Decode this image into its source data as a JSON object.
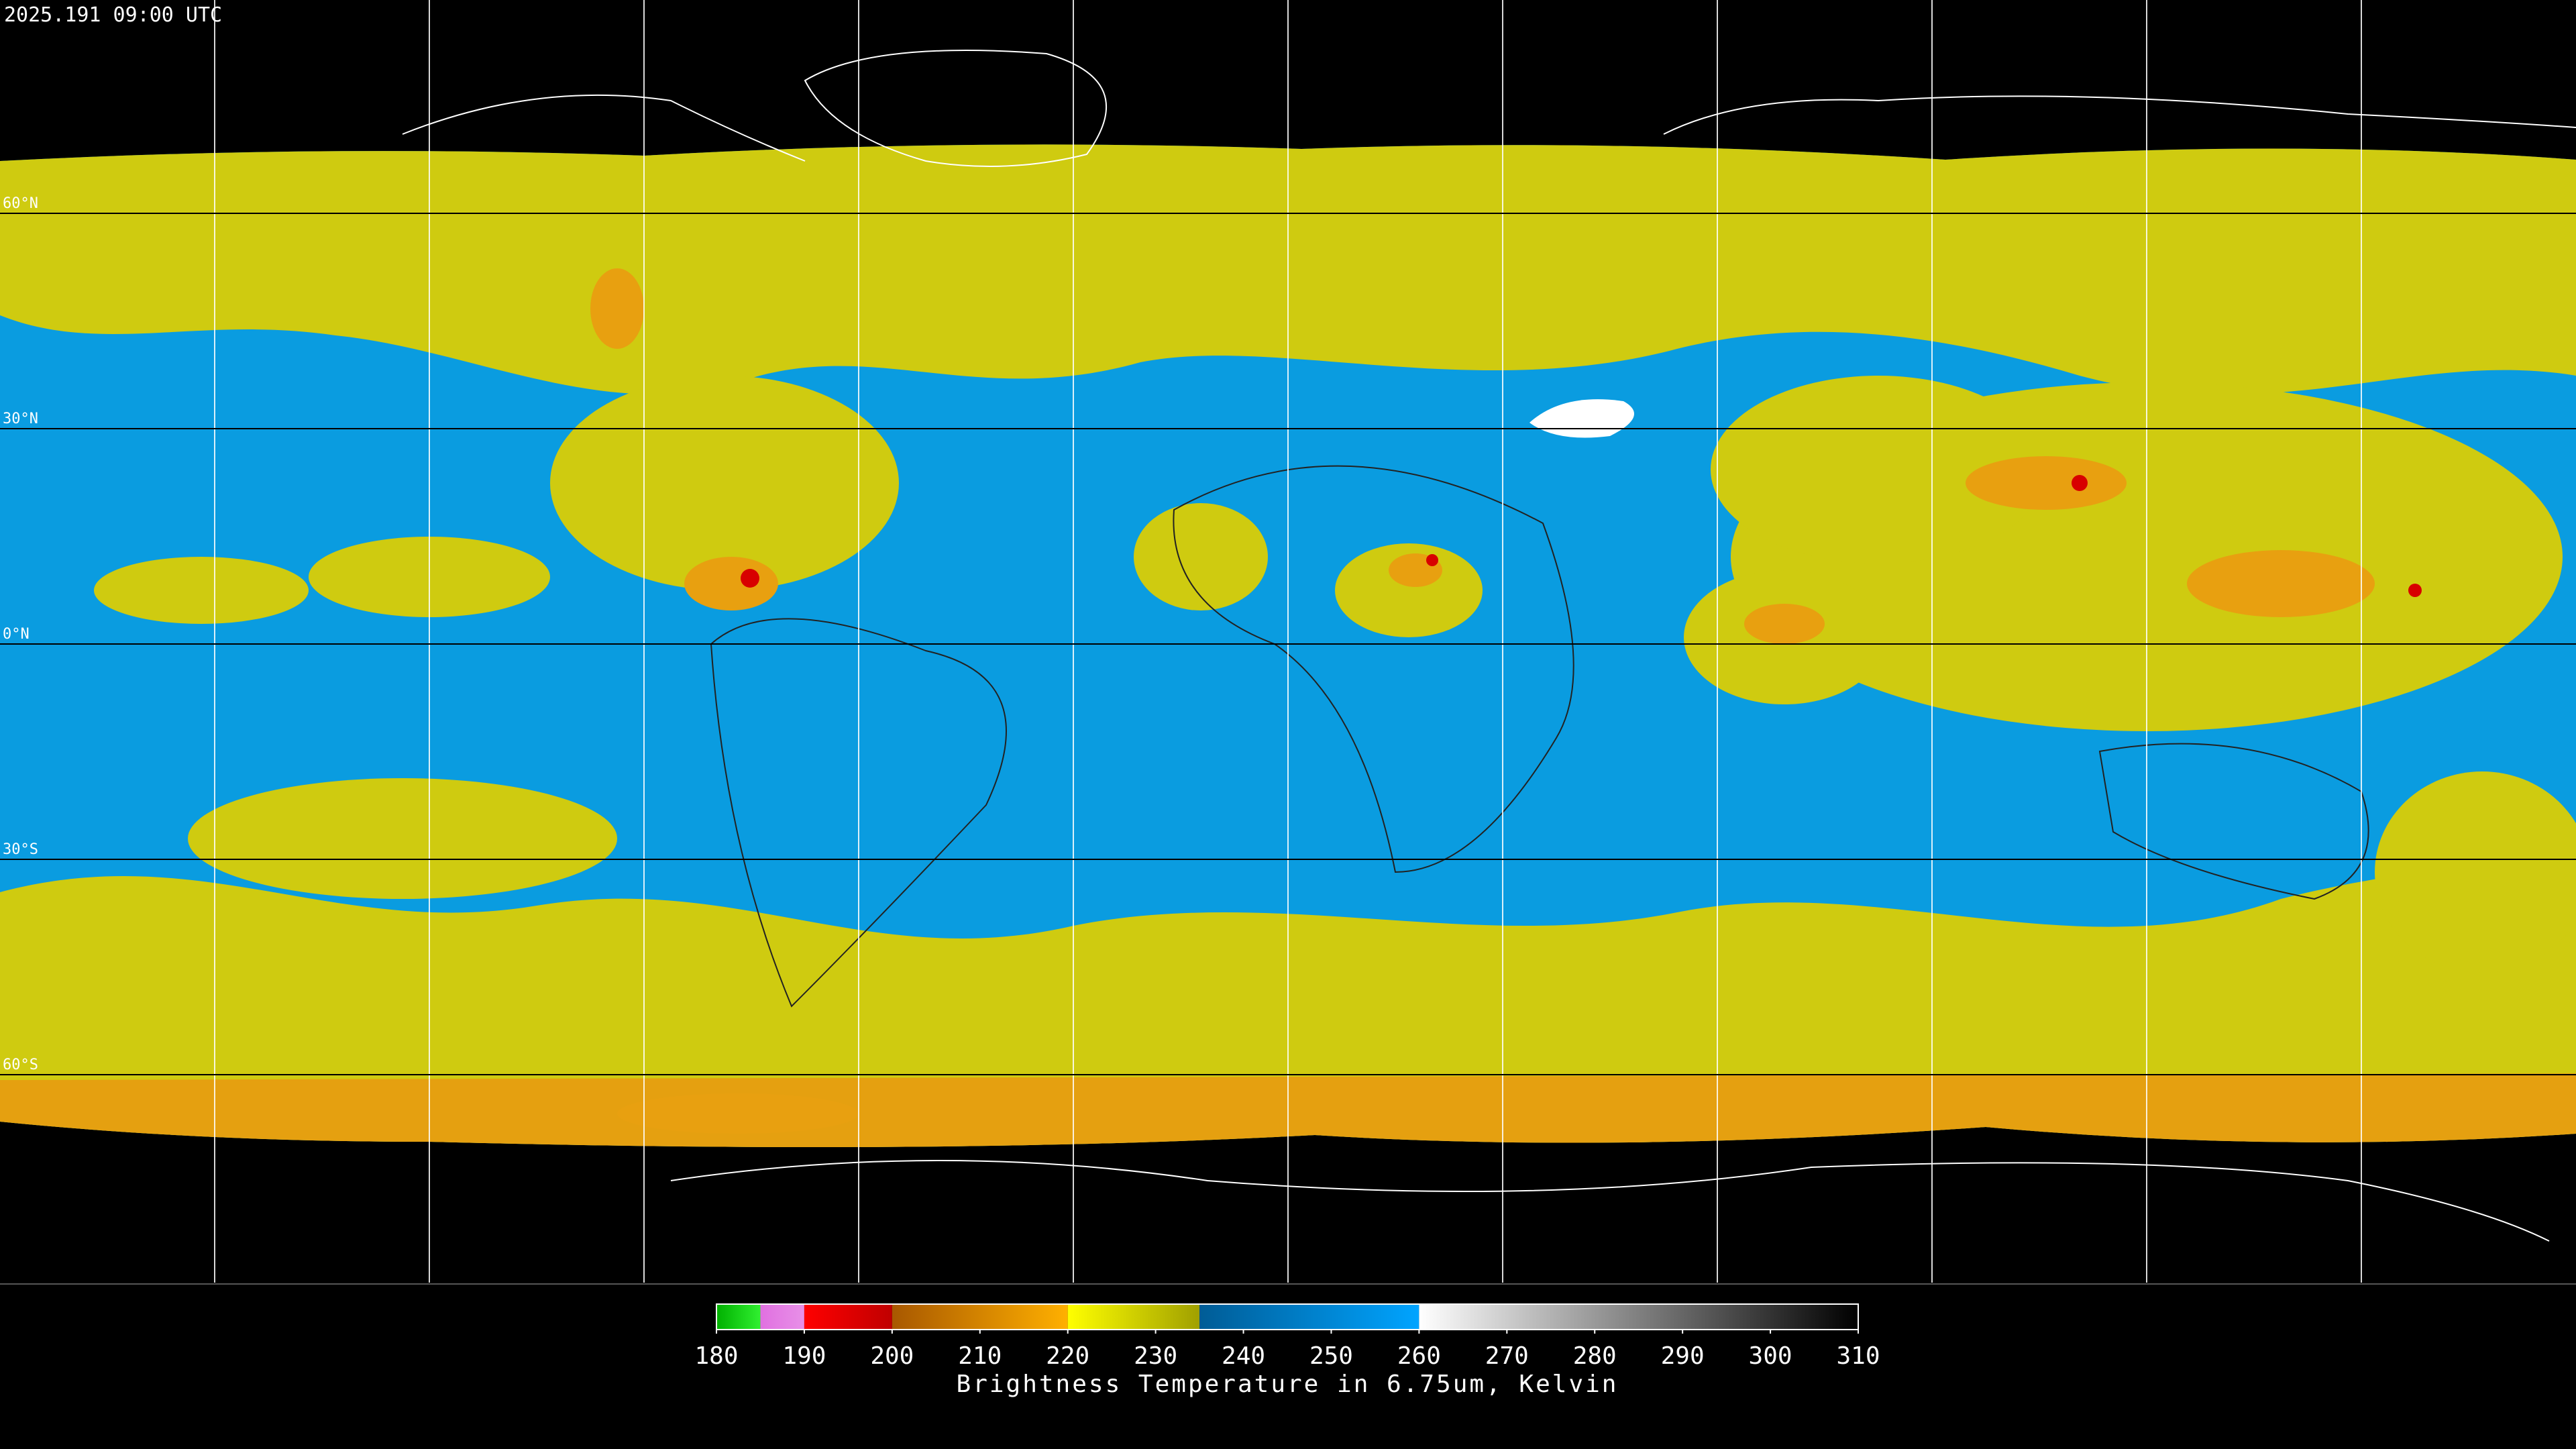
{
  "header": {
    "timestamp": "2025.191 09:00 UTC"
  },
  "map": {
    "lat_lines": [
      {
        "value": 60,
        "label": "60°N"
      },
      {
        "value": 30,
        "label": "30°N"
      },
      {
        "value": 0,
        "label": "0°N"
      },
      {
        "value": -30,
        "label": "30°S"
      },
      {
        "value": -60,
        "label": "60°S"
      }
    ]
  },
  "colorbar": {
    "lim": [
      180,
      310
    ],
    "ticks": [
      180,
      190,
      200,
      210,
      220,
      230,
      240,
      250,
      260,
      270,
      280,
      290,
      300,
      310
    ],
    "segments": [
      {
        "from": 180,
        "to": 185,
        "colors": [
          "#00b000",
          "#30f030"
        ]
      },
      {
        "from": 185,
        "to": 190,
        "colors": [
          "#e070e0",
          "#e890e8"
        ]
      },
      {
        "from": 190,
        "to": 200,
        "colors": [
          "#ff0000",
          "#c00000"
        ]
      },
      {
        "from": 200,
        "to": 220,
        "colors": [
          "#a85800",
          "#ffb000"
        ]
      },
      {
        "from": 220,
        "to": 235,
        "colors": [
          "#ffff00",
          "#a0a000"
        ]
      },
      {
        "from": 235,
        "to": 260,
        "colors": [
          "#005c96",
          "#00a4ff"
        ]
      },
      {
        "from": 260,
        "to": 310,
        "colors": [
          "#ffffff",
          "#000000"
        ]
      }
    ],
    "title": "Brightness Temperature in 6.75um, Kelvin"
  }
}
